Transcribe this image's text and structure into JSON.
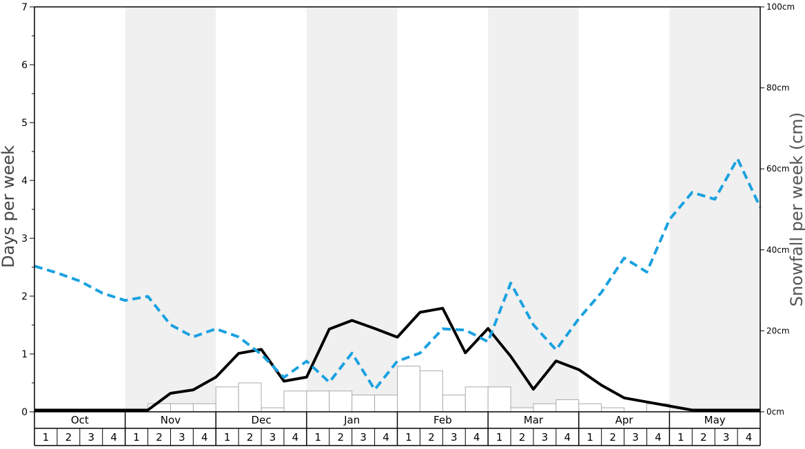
{
  "chart_data": {
    "type": "bar",
    "ylabel": "Days per week",
    "y2label": "Snowfall per week (cm)",
    "ylim": [
      0,
      7
    ],
    "y_ticks": [
      "0",
      "1",
      "2",
      "3",
      "4",
      "5",
      "6",
      "7"
    ],
    "y2lim": [
      0,
      100
    ],
    "y2_ticks": [
      "0cm",
      "20cm",
      "40cm",
      "60cm",
      "80cm",
      "100cm"
    ],
    "months": [
      "Oct",
      "Nov",
      "Dec",
      "Jan",
      "Feb",
      "Mar",
      "Apr",
      "May"
    ],
    "week_labels": [
      "1",
      "2",
      "3",
      "4"
    ],
    "shaded_months": [
      "Nov",
      "Jan",
      "Mar",
      "May"
    ],
    "grid": false,
    "series": [
      {
        "kind": "bar",
        "axis": "left",
        "color": "#ffffff",
        "values": [
          0,
          0,
          0,
          0,
          0,
          0.14,
          0.14,
          0.14,
          0.43,
          0.5,
          0.07,
          0.36,
          0.36,
          0.36,
          0.29,
          0.29,
          0.79,
          0.71,
          0.29,
          0.43,
          0.43,
          0.07,
          0.14,
          0.21,
          0.14,
          0.07,
          0,
          0.14,
          0,
          0,
          0,
          0
        ]
      },
      {
        "kind": "line",
        "axis": "left",
        "color": "#000000",
        "values": [
          0.03,
          0.03,
          0.03,
          0.03,
          0.03,
          0.03,
          0.32,
          0.38,
          0.6,
          1.01,
          1.08,
          0.53,
          0.6,
          1.43,
          1.58,
          1.44,
          1.29,
          1.72,
          1.79,
          1.02,
          1.44,
          0.96,
          0.39,
          0.88,
          0.73,
          0.46,
          0.24,
          0.17,
          0.1,
          0.03,
          0.03,
          0.03,
          0.03
        ]
      },
      {
        "kind": "line",
        "axis": "right",
        "style": "dashed",
        "color": "#1aa1e0",
        "values": [
          36,
          34.3,
          32.3,
          29.3,
          27.5,
          28.5,
          21.5,
          18.5,
          20.5,
          18.5,
          14.2,
          8.5,
          12.5,
          7.3,
          14.5,
          5.5,
          12.5,
          14.5,
          20.5,
          20.2,
          17.3,
          31.8,
          21.5,
          15.3,
          23,
          29.5,
          38,
          34.5,
          47.5,
          54.2,
          52.5,
          62.5,
          50.5
        ]
      }
    ]
  }
}
